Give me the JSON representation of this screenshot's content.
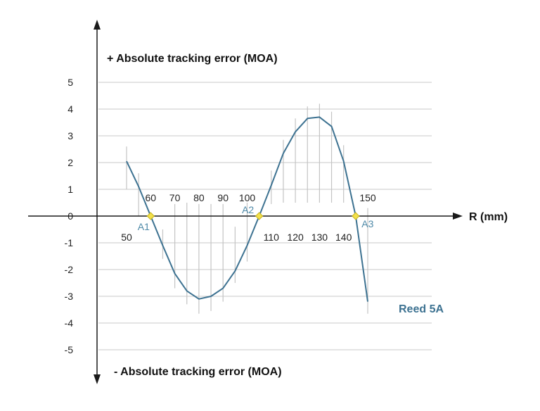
{
  "chart_data": {
    "type": "line",
    "ylabel_top": "+ Absolute tracking error (MOA)",
    "ylabel_bottom": "- Absolute tracking error (MOA)",
    "xlabel": "R (mm)",
    "xlim": [
      40,
      155
    ],
    "ylim": [
      -5,
      5
    ],
    "y_ticks": [
      5,
      4,
      3,
      2,
      1,
      0,
      -1,
      -2,
      -3,
      -4,
      -5
    ],
    "x_ticks": [
      {
        "value": 50,
        "label": "50",
        "side": "below"
      },
      {
        "value": 60,
        "label": "60",
        "side": "above"
      },
      {
        "value": 70,
        "label": "70",
        "side": "above"
      },
      {
        "value": 80,
        "label": "80",
        "side": "above"
      },
      {
        "value": 90,
        "label": "90",
        "side": "above"
      },
      {
        "value": 100,
        "label": "100",
        "side": "above"
      },
      {
        "value": 110,
        "label": "110",
        "side": "below"
      },
      {
        "value": 120,
        "label": "120",
        "side": "below"
      },
      {
        "value": 130,
        "label": "130",
        "side": "below"
      },
      {
        "value": 140,
        "label": "140",
        "side": "below"
      },
      {
        "value": 150,
        "label": "150",
        "side": "above"
      }
    ],
    "grid": true,
    "series": [
      {
        "name": "Reed 5A",
        "color": "#3d7291",
        "x": [
          50,
          55,
          60,
          65,
          70,
          75,
          80,
          85,
          90,
          95,
          100,
          105,
          110,
          115,
          120,
          125,
          130,
          135,
          140,
          145,
          150
        ],
        "y": [
          2.05,
          1.1,
          0.0,
          -1.1,
          -2.15,
          -2.8,
          -3.1,
          -3.0,
          -2.7,
          -2.05,
          -1.1,
          0.0,
          1.15,
          2.35,
          3.15,
          3.65,
          3.7,
          3.35,
          2.05,
          0.0,
          -3.2
        ]
      }
    ],
    "error_bars": [
      {
        "x": 50,
        "low": 1.0,
        "high": 2.6
      },
      {
        "x": 55,
        "low": 0.0,
        "high": 1.6
      },
      {
        "x": 65,
        "low": -1.6,
        "high": -0.5
      },
      {
        "x": 70,
        "low": -2.7,
        "high": 0.45
      },
      {
        "x": 75,
        "low": -3.3,
        "high": 0.5
      },
      {
        "x": 80,
        "low": -3.65,
        "high": 0.45
      },
      {
        "x": 85,
        "low": -3.55,
        "high": 0.45
      },
      {
        "x": 90,
        "low": -3.2,
        "high": 0.45
      },
      {
        "x": 95,
        "low": -2.5,
        "high": -0.4
      },
      {
        "x": 100,
        "low": -1.7,
        "high": 0.5
      },
      {
        "x": 110,
        "low": 0.45,
        "high": 1.7
      },
      {
        "x": 115,
        "low": 0.5,
        "high": 2.85
      },
      {
        "x": 120,
        "low": 0.5,
        "high": 3.65
      },
      {
        "x": 125,
        "low": 0.5,
        "high": 4.1
      },
      {
        "x": 130,
        "low": 0.5,
        "high": 4.2
      },
      {
        "x": 135,
        "low": 0.5,
        "high": 3.9
      },
      {
        "x": 140,
        "low": 0.5,
        "high": 2.65
      },
      {
        "x": 150,
        "low": -3.65,
        "high": 0.3
      }
    ],
    "annotations": [
      {
        "label": "A1",
        "x": 60,
        "y": 0
      },
      {
        "label": "A2",
        "x": 105,
        "y": 0
      },
      {
        "label": "A3",
        "x": 145,
        "y": 0
      }
    ],
    "colors": {
      "line": "#3d7291",
      "marker": "#f2e04a",
      "marker_stroke": "#c9b520",
      "grid": "#c8c8c8",
      "errorbar": "#c4c4c4",
      "axis": "#1a1a1a",
      "annotation_text": "#4f8aa8"
    }
  }
}
